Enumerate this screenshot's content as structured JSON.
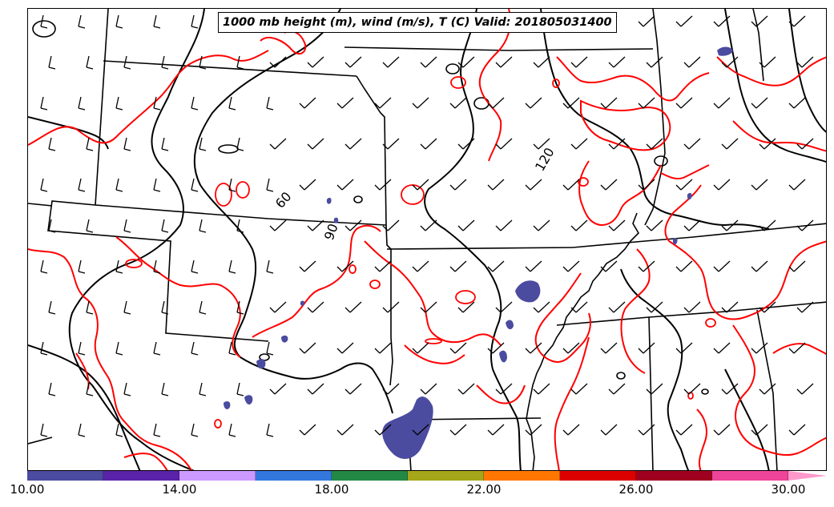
{
  "title": "1000 mb height (m), wind (m/s), T (C) Valid: 201805031400",
  "contour_labels": [
    "60",
    "90",
    "120"
  ],
  "colorbar": {
    "ticks": [
      "10.00",
      "14.00",
      "18.00",
      "22.00",
      "26.00",
      "30.00"
    ],
    "colors": [
      "#4b4ba0",
      "#5a22a8",
      "#cc99ff",
      "#3377dd",
      "#228844",
      "#a6a61a",
      "#ff7700",
      "#dd0000",
      "#a0001f",
      "#ee4499"
    ],
    "extend_color": "#ff99cc"
  },
  "colors": {
    "temperature_contour": "#ff0000",
    "height_contour": "#000000",
    "precip_shading": "#4b4ba0"
  },
  "icons": [
    "wind-barb-icon"
  ]
}
